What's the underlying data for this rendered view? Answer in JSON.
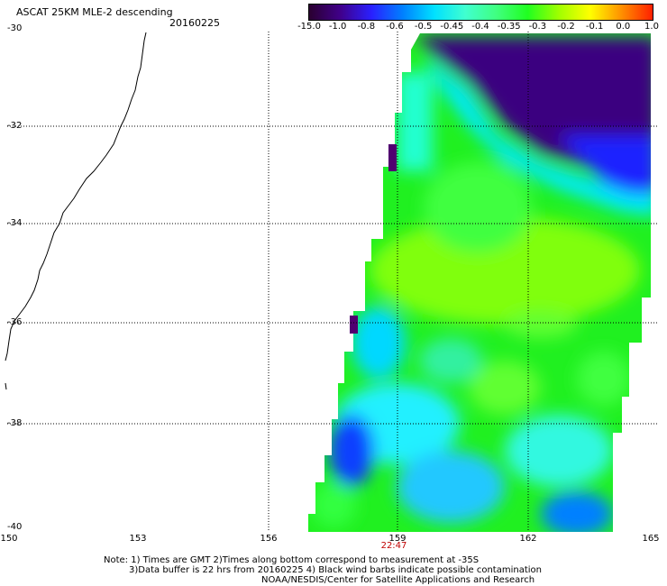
{
  "header": {
    "title": "ASCAT 25KM MLE-2 descending",
    "date": "20160225"
  },
  "colorbar": {
    "labels": [
      "-15.0",
      "-1.0",
      "-0.8",
      "-0.6",
      "-0.5",
      "-0.45",
      "-0.4",
      "-0.35",
      "-0.3",
      "-0.2",
      "-0.1",
      "0.0",
      "1.0"
    ],
    "colors": [
      "#2a0030",
      "#40008a",
      "#2a20ff",
      "#0080ff",
      "#00e0ff",
      "#40ffd0",
      "#40ff80",
      "#20ff20",
      "#a0ff00",
      "#ffff00",
      "#ff9000",
      "#ff2000"
    ]
  },
  "axes": {
    "lat_labels": [
      "-30",
      "-32",
      "-34",
      "-36",
      "-38",
      "-40"
    ],
    "lon_labels": [
      "150",
      "153",
      "156",
      "159",
      "162",
      "165"
    ]
  },
  "pass_time": "22:47",
  "notes": {
    "line1": "Note: 1) Times are GMT 2)Times along bottom correspond to measurement at -35S",
    "line2": "3)Data buffer is 22 hrs from 20160225 4) Black wind barbs indicate possible contamination",
    "line3": "NOAA/NESDIS/Center for Satellite Applications and Research"
  }
}
